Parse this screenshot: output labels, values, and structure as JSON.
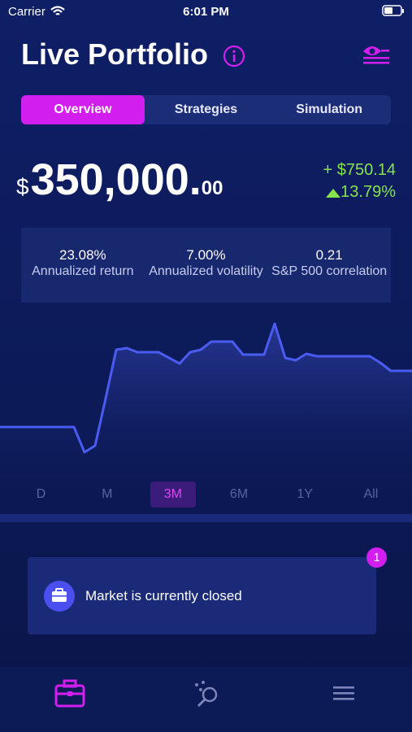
{
  "status_bar": {
    "carrier": "Carrier",
    "time": "6:01 PM"
  },
  "header": {
    "title": "Live Portfolio"
  },
  "tabs": {
    "items": [
      "Overview",
      "Strategies",
      "Simulation"
    ],
    "active": "Overview"
  },
  "balance": {
    "currency": "$",
    "whole": "350,000.",
    "cents": "00",
    "change": "+ $750.14",
    "change_percent": "13.79%"
  },
  "stats": [
    {
      "value": "23.08%",
      "label": "Annualized return"
    },
    {
      "value": "7.00%",
      "label": "Annualized volatility"
    },
    {
      "value": "0.21",
      "label": "S&P 500 correlation"
    }
  ],
  "chart_data": {
    "type": "area",
    "color": "#4a5cf0",
    "values": [
      75,
      75,
      75,
      75,
      75,
      75,
      75,
      75,
      44,
      52,
      110,
      170,
      172,
      167,
      167,
      167,
      160,
      153,
      167,
      170,
      180,
      180,
      180,
      164,
      164,
      164,
      202,
      160,
      157,
      165,
      162,
      162,
      162,
      162,
      162,
      162,
      154,
      144,
      144,
      144
    ]
  },
  "ranges": {
    "items": [
      "D",
      "M",
      "3M",
      "6M",
      "1Y",
      "All"
    ],
    "active": "3M"
  },
  "notification": {
    "message": "Market is currently closed",
    "badge": "1"
  }
}
